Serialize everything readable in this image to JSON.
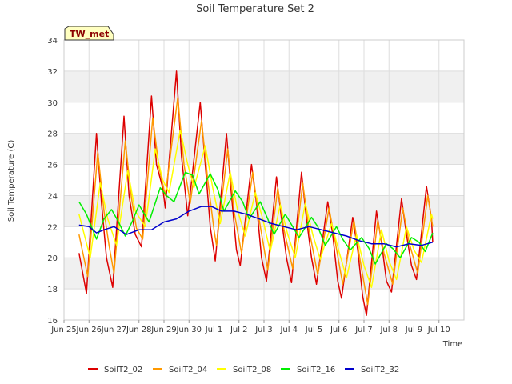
{
  "chart_data": {
    "type": "line",
    "title": "Soil Temperature Set 2",
    "xlabel": "Time",
    "ylabel": "Soil Temperature (C)",
    "badge": "TW_met",
    "ylim": [
      16,
      34
    ],
    "yticks": [
      "16",
      "18",
      "20",
      "22",
      "24",
      "26",
      "28",
      "30",
      "32",
      "34"
    ],
    "xlim": [
      0,
      16
    ],
    "xtick_labels": [
      "Jun 25",
      "Jun 26",
      "Jun 27",
      "Jun 28",
      "Jun 29",
      "Jun 30",
      "Jul 1",
      "Jul 2",
      "Jul 3",
      "Jul 4",
      "Jul 5",
      "Jul 6",
      "Jul 7",
      "Jul 8",
      "Jul 9",
      "Jul 10"
    ],
    "grid": true,
    "legend_position": "bottom",
    "series": [
      {
        "name": "SoilT2_02",
        "color": "#dd0000",
        "points": [
          [
            0.6,
            20.3
          ],
          [
            0.9,
            17.7
          ],
          [
            1.3,
            28.0
          ],
          [
            1.5,
            23.5
          ],
          [
            1.7,
            20.0
          ],
          [
            1.95,
            18.1
          ],
          [
            2.4,
            29.1
          ],
          [
            2.6,
            24.0
          ],
          [
            2.85,
            21.5
          ],
          [
            3.1,
            20.7
          ],
          [
            3.5,
            30.4
          ],
          [
            3.7,
            26.0
          ],
          [
            3.95,
            24.5
          ],
          [
            4.05,
            23.2
          ],
          [
            4.5,
            32.0
          ],
          [
            4.7,
            26.5
          ],
          [
            4.95,
            22.7
          ],
          [
            5.45,
            30.0
          ],
          [
            5.65,
            26.0
          ],
          [
            5.85,
            22.0
          ],
          [
            6.05,
            19.8
          ],
          [
            6.5,
            28.0
          ],
          [
            6.7,
            24.0
          ],
          [
            6.9,
            20.5
          ],
          [
            7.05,
            19.5
          ],
          [
            7.5,
            26.0
          ],
          [
            7.7,
            23.5
          ],
          [
            7.9,
            20.0
          ],
          [
            8.1,
            18.5
          ],
          [
            8.5,
            25.2
          ],
          [
            8.7,
            22.5
          ],
          [
            8.9,
            20.0
          ],
          [
            9.1,
            18.4
          ],
          [
            9.5,
            25.5
          ],
          [
            9.7,
            22.5
          ],
          [
            9.9,
            20.0
          ],
          [
            10.1,
            18.3
          ],
          [
            10.55,
            23.6
          ],
          [
            10.75,
            21.5
          ],
          [
            10.95,
            18.5
          ],
          [
            11.1,
            17.4
          ],
          [
            11.55,
            22.6
          ],
          [
            11.75,
            20.5
          ],
          [
            11.95,
            17.5
          ],
          [
            12.1,
            16.3
          ],
          [
            12.5,
            23.0
          ],
          [
            12.7,
            21.0
          ],
          [
            12.9,
            18.5
          ],
          [
            13.1,
            17.8
          ],
          [
            13.5,
            23.8
          ],
          [
            13.7,
            21.5
          ],
          [
            13.9,
            19.5
          ],
          [
            14.1,
            18.6
          ],
          [
            14.5,
            24.6
          ],
          [
            14.7,
            22.5
          ],
          [
            14.75,
            21.0
          ]
        ]
      },
      {
        "name": "SoilT2_04",
        "color": "#ff9900",
        "points": [
          [
            0.6,
            21.5
          ],
          [
            0.95,
            18.8
          ],
          [
            1.35,
            26.8
          ],
          [
            1.6,
            23.0
          ],
          [
            1.8,
            20.8
          ],
          [
            2.0,
            19.0
          ],
          [
            2.45,
            27.5
          ],
          [
            2.7,
            23.8
          ],
          [
            2.9,
            21.9
          ],
          [
            3.15,
            21.2
          ],
          [
            3.55,
            29.0
          ],
          [
            3.8,
            25.8
          ],
          [
            4.05,
            24.0
          ],
          [
            4.55,
            30.3
          ],
          [
            4.8,
            26.0
          ],
          [
            5.05,
            23.5
          ],
          [
            5.5,
            28.8
          ],
          [
            5.75,
            25.0
          ],
          [
            6.0,
            21.8
          ],
          [
            6.1,
            20.8
          ],
          [
            6.55,
            27.0
          ],
          [
            6.8,
            23.0
          ],
          [
            7.1,
            20.3
          ],
          [
            7.55,
            25.5
          ],
          [
            7.8,
            22.5
          ],
          [
            8.15,
            19.2
          ],
          [
            8.55,
            24.5
          ],
          [
            8.8,
            21.8
          ],
          [
            9.15,
            19.3
          ],
          [
            9.55,
            24.8
          ],
          [
            9.8,
            21.8
          ],
          [
            10.15,
            18.9
          ],
          [
            10.6,
            23.2
          ],
          [
            10.85,
            21.0
          ],
          [
            11.15,
            18.3
          ],
          [
            11.6,
            22.4
          ],
          [
            11.85,
            19.8
          ],
          [
            12.15,
            17.0
          ],
          [
            12.55,
            22.4
          ],
          [
            12.8,
            20.3
          ],
          [
            13.15,
            18.3
          ],
          [
            13.55,
            23.2
          ],
          [
            13.8,
            21.0
          ],
          [
            14.15,
            19.0
          ],
          [
            14.55,
            24.0
          ],
          [
            14.75,
            22.0
          ]
        ]
      },
      {
        "name": "SoilT2_08",
        "color": "#ffff00",
        "points": [
          [
            0.6,
            22.8
          ],
          [
            1.05,
            20.0
          ],
          [
            1.45,
            24.8
          ],
          [
            1.75,
            22.5
          ],
          [
            2.1,
            20.8
          ],
          [
            2.55,
            25.6
          ],
          [
            2.85,
            23.0
          ],
          [
            3.25,
            22.0
          ],
          [
            3.65,
            27.0
          ],
          [
            3.95,
            25.0
          ],
          [
            4.2,
            24.2
          ],
          [
            4.65,
            28.2
          ],
          [
            4.95,
            26.0
          ],
          [
            5.2,
            24.5
          ],
          [
            5.65,
            27.2
          ],
          [
            5.95,
            24.5
          ],
          [
            6.25,
            22.2
          ],
          [
            6.65,
            25.5
          ],
          [
            6.95,
            23.0
          ],
          [
            7.25,
            21.4
          ],
          [
            7.65,
            24.2
          ],
          [
            7.95,
            22.5
          ],
          [
            8.25,
            20.4
          ],
          [
            8.65,
            23.4
          ],
          [
            8.95,
            21.5
          ],
          [
            9.25,
            20.0
          ],
          [
            9.65,
            23.5
          ],
          [
            9.95,
            21.5
          ],
          [
            10.25,
            19.9
          ],
          [
            10.7,
            22.2
          ],
          [
            11.0,
            20.4
          ],
          [
            11.3,
            18.7
          ],
          [
            11.7,
            21.5
          ],
          [
            12.0,
            19.5
          ],
          [
            12.3,
            18.1
          ],
          [
            12.7,
            21.8
          ],
          [
            13.0,
            19.8
          ],
          [
            13.3,
            18.6
          ],
          [
            13.7,
            22.0
          ],
          [
            14.0,
            20.5
          ],
          [
            14.3,
            19.7
          ],
          [
            14.7,
            22.8
          ],
          [
            14.75,
            22.5
          ]
        ]
      },
      {
        "name": "SoilT2_16",
        "color": "#00ee00",
        "points": [
          [
            0.6,
            23.6
          ],
          [
            0.9,
            22.8
          ],
          [
            1.3,
            21.2
          ],
          [
            1.6,
            22.5
          ],
          [
            1.9,
            23.1
          ],
          [
            2.15,
            22.4
          ],
          [
            2.45,
            21.4
          ],
          [
            2.75,
            22.4
          ],
          [
            3.0,
            23.4
          ],
          [
            3.4,
            22.3
          ],
          [
            3.85,
            24.5
          ],
          [
            4.1,
            24.0
          ],
          [
            4.4,
            23.6
          ],
          [
            4.85,
            25.5
          ],
          [
            5.15,
            25.3
          ],
          [
            5.4,
            24.1
          ],
          [
            5.85,
            25.4
          ],
          [
            6.15,
            24.4
          ],
          [
            6.4,
            23.0
          ],
          [
            6.85,
            24.3
          ],
          [
            7.15,
            23.6
          ],
          [
            7.4,
            22.5
          ],
          [
            7.85,
            23.6
          ],
          [
            8.15,
            22.5
          ],
          [
            8.4,
            21.5
          ],
          [
            8.85,
            22.8
          ],
          [
            9.15,
            22.0
          ],
          [
            9.4,
            21.3
          ],
          [
            9.9,
            22.6
          ],
          [
            10.15,
            22.0
          ],
          [
            10.45,
            20.8
          ],
          [
            10.9,
            22.0
          ],
          [
            11.15,
            21.2
          ],
          [
            11.45,
            20.5
          ],
          [
            11.9,
            21.3
          ],
          [
            12.2,
            20.6
          ],
          [
            12.45,
            19.6
          ],
          [
            12.9,
            20.9
          ],
          [
            13.15,
            20.6
          ],
          [
            13.45,
            20.0
          ],
          [
            13.9,
            21.3
          ],
          [
            14.2,
            21.0
          ],
          [
            14.45,
            20.4
          ],
          [
            14.75,
            21.6
          ]
        ]
      },
      {
        "name": "SoilT2_32",
        "color": "#0000cc",
        "points": [
          [
            0.6,
            22.1
          ],
          [
            1.0,
            22.0
          ],
          [
            1.3,
            21.6
          ],
          [
            1.6,
            21.8
          ],
          [
            2.0,
            22.0
          ],
          [
            2.5,
            21.5
          ],
          [
            3.0,
            21.8
          ],
          [
            3.5,
            21.8
          ],
          [
            4.0,
            22.3
          ],
          [
            4.5,
            22.5
          ],
          [
            5.0,
            23.0
          ],
          [
            5.5,
            23.3
          ],
          [
            5.9,
            23.3
          ],
          [
            6.3,
            23.0
          ],
          [
            6.8,
            23.0
          ],
          [
            7.3,
            22.8
          ],
          [
            7.8,
            22.5
          ],
          [
            8.3,
            22.2
          ],
          [
            8.8,
            22.0
          ],
          [
            9.3,
            21.8
          ],
          [
            9.8,
            22.0
          ],
          [
            10.3,
            21.8
          ],
          [
            10.8,
            21.6
          ],
          [
            11.3,
            21.4
          ],
          [
            11.8,
            21.1
          ],
          [
            12.3,
            20.9
          ],
          [
            12.8,
            20.9
          ],
          [
            13.3,
            20.7
          ],
          [
            13.8,
            20.9
          ],
          [
            14.3,
            20.8
          ],
          [
            14.75,
            21.0
          ]
        ]
      }
    ]
  }
}
